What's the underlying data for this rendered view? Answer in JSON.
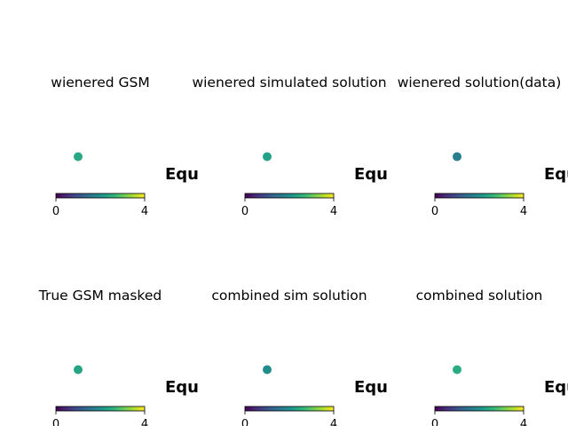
{
  "figure": {
    "colormap": "viridis",
    "colormap_stops": [
      "#440154",
      "#482878",
      "#3e4989",
      "#31688e",
      "#26828e",
      "#1f9e89",
      "#35b779",
      "#6ece58",
      "#b5de2b",
      "#fde725"
    ]
  },
  "chart_data": [
    {
      "type": "scatter",
      "title": "wienered GSM",
      "side_text": "Equ",
      "colorbar": {
        "min": 0,
        "max": 4,
        "ticks": [
          0,
          4
        ]
      },
      "points": [
        {
          "x": 1,
          "y": 1,
          "value": 2.4
        }
      ]
    },
    {
      "type": "scatter",
      "title": "wienered simulated solution",
      "side_text": "Equ",
      "colorbar": {
        "min": 0,
        "max": 4,
        "ticks": [
          0,
          4
        ]
      },
      "points": [
        {
          "x": 1,
          "y": 1,
          "value": 2.3
        }
      ]
    },
    {
      "type": "scatter",
      "title": "wienered solution(data)",
      "side_text": "Equ",
      "colorbar": {
        "min": 0,
        "max": 4,
        "ticks": [
          0,
          4
        ]
      },
      "points": [
        {
          "x": 1,
          "y": 1,
          "value": 1.7
        }
      ]
    },
    {
      "type": "scatter",
      "title": "True GSM masked",
      "side_text": "Equ",
      "colorbar": {
        "min": 0,
        "max": 4,
        "ticks": [
          0,
          4
        ]
      },
      "points": [
        {
          "x": 1,
          "y": 1,
          "value": 2.35
        }
      ]
    },
    {
      "type": "scatter",
      "title": "combined sim solution",
      "side_text": "Equ",
      "colorbar": {
        "min": 0,
        "max": 4,
        "ticks": [
          0,
          4
        ]
      },
      "points": [
        {
          "x": 1,
          "y": 1,
          "value": 1.95
        }
      ]
    },
    {
      "type": "scatter",
      "title": "combined solution",
      "side_text": "Equ",
      "colorbar": {
        "min": 0,
        "max": 4,
        "ticks": [
          0,
          4
        ]
      },
      "points": [
        {
          "x": 1,
          "y": 1,
          "value": 2.45
        }
      ]
    }
  ]
}
